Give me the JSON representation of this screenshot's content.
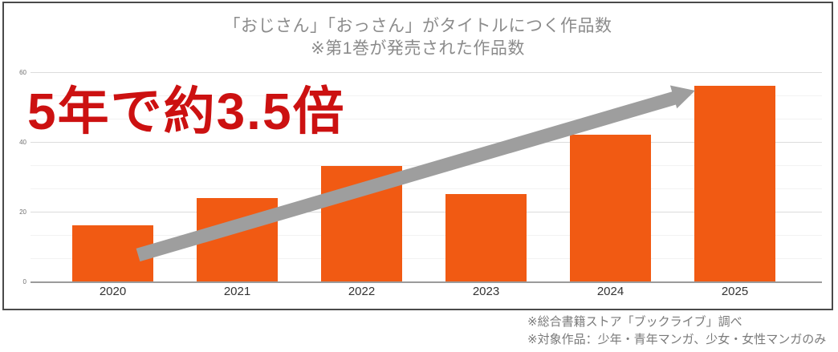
{
  "chart_data": {
    "type": "bar",
    "title_lines": [
      "「おじさん」「おっさん」がタイトルにつく作品数",
      "※第1巻が発売された作品数"
    ],
    "categories": [
      "2020",
      "2021",
      "2022",
      "2023",
      "2024",
      "2025"
    ],
    "values": [
      16,
      24,
      33,
      25,
      42,
      56
    ],
    "xlabel": "",
    "ylabel": "",
    "ylim": [
      0,
      60
    ],
    "yticks": [
      0,
      20,
      40,
      60
    ],
    "minor_divisions": 3,
    "grid": true,
    "legend_position": "none",
    "bar_color": "#f15a13",
    "annotation": {
      "text": "5年で約3.5倍",
      "color": "#cc1111"
    },
    "trend_arrow": {
      "direction": "up-right",
      "color": "#9e9e9e"
    }
  },
  "footer": {
    "lines": [
      "※総合書籍ストア「ブックライブ」調べ",
      "※対象作品：少年・青年マンガ、少女・女性マンガのみ"
    ]
  }
}
